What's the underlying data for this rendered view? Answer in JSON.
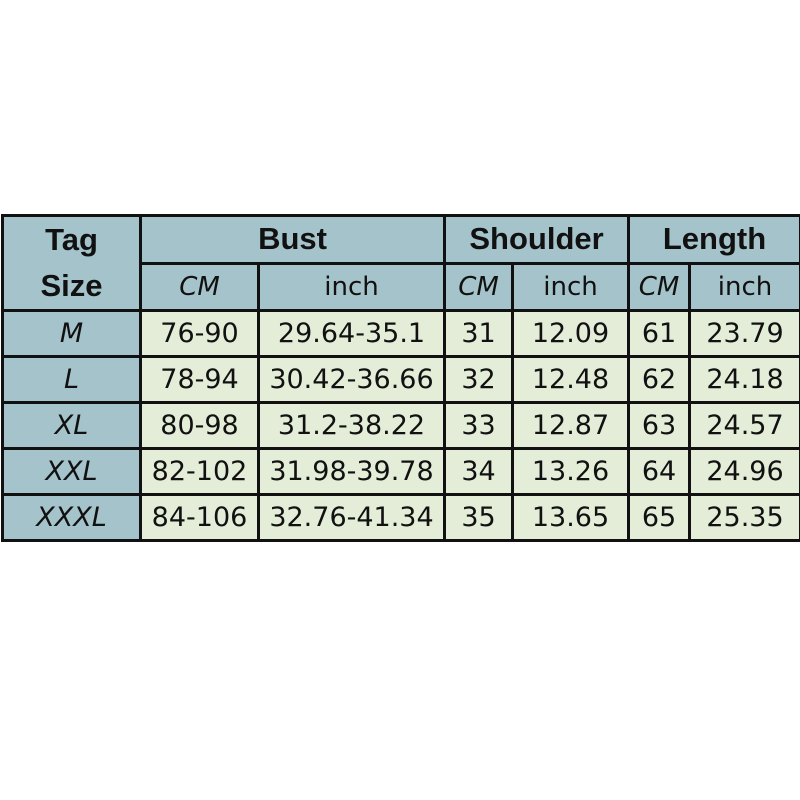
{
  "header": {
    "tag_size": [
      "Tag",
      "Size"
    ],
    "groups": [
      "Bust",
      "Shoulder",
      "Length"
    ],
    "units": [
      "CM",
      "inch",
      "CM",
      "inch",
      "CM",
      "inch"
    ]
  },
  "rows": [
    [
      "M",
      "76-90",
      "29.64-35.1",
      "31",
      "12.09",
      "61",
      "23.79"
    ],
    [
      "L",
      "78-94",
      "30.42-36.66",
      "32",
      "12.48",
      "62",
      "24.18"
    ],
    [
      "XL",
      "80-98",
      "31.2-38.22",
      "33",
      "12.87",
      "63",
      "24.57"
    ],
    [
      "XXL",
      "82-102",
      "31.98-39.78",
      "34",
      "13.26",
      "64",
      "24.96"
    ],
    [
      "XXXL",
      "84-106",
      "32.76-41.34",
      "35",
      "13.65",
      "65",
      "25.35"
    ]
  ],
  "colors": {
    "header": "#a5c3ca",
    "cell": "#e3edd8"
  }
}
